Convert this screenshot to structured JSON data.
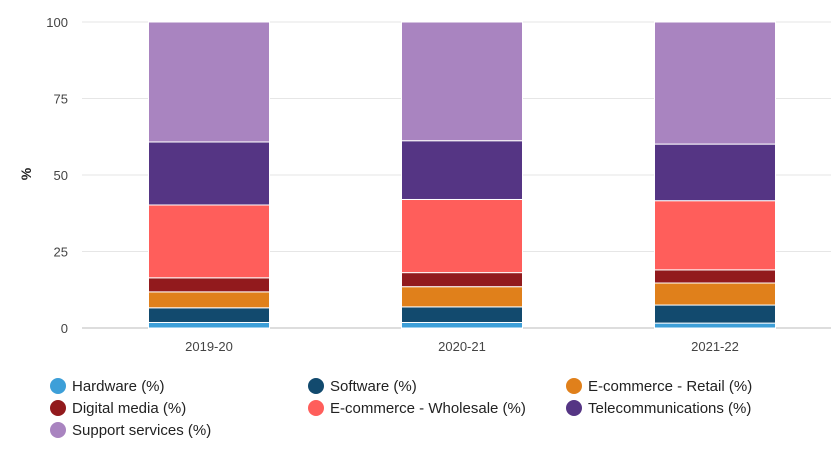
{
  "chart_data": {
    "type": "bar",
    "stacked": true,
    "categories": [
      "2019-20",
      "2020-21",
      "2021-22"
    ],
    "ylabel": "%",
    "ylim": [
      0,
      100
    ],
    "yticks": [
      0,
      25,
      50,
      75,
      100
    ],
    "grid": true,
    "legend_position": "bottom",
    "series": [
      {
        "name": "Hardware (%)",
        "color": "#3d9fd8",
        "values": [
          1.8,
          1.8,
          1.6
        ]
      },
      {
        "name": "Software (%)",
        "color": "#124a6e",
        "values": [
          4.8,
          5.1,
          5.9
        ]
      },
      {
        "name": "E-commerce - Retail (%)",
        "color": "#e0801b",
        "values": [
          5.2,
          6.6,
          7.2
        ]
      },
      {
        "name": "Digital media (%)",
        "color": "#921a1d",
        "values": [
          4.6,
          4.6,
          4.3
        ]
      },
      {
        "name": "E-commerce - Wholesale (%)",
        "color": "#ff5e5b",
        "values": [
          23.8,
          23.9,
          22.6
        ]
      },
      {
        "name": "Telecommunications (%)",
        "color": "#553584",
        "values": [
          20.6,
          19.2,
          18.5
        ]
      },
      {
        "name": "Support services (%)",
        "color": "#a984c0",
        "values": [
          39.2,
          38.8,
          39.9
        ]
      }
    ]
  }
}
